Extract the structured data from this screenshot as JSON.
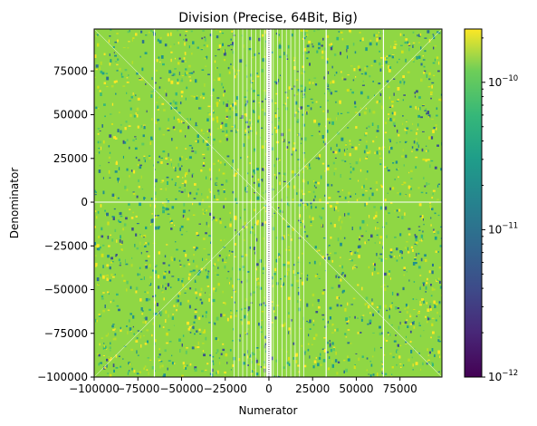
{
  "chart_data": {
    "type": "heatmap",
    "title": "Division (Precise, 64Bit, Big)",
    "xlabel": "Numerator",
    "ylabel": "Denominator",
    "xlim": [
      -100000,
      99000
    ],
    "ylim": [
      -100000,
      99000
    ],
    "x_ticks": [
      -100000,
      -75000,
      -50000,
      -25000,
      0,
      25000,
      50000,
      75000
    ],
    "x_tick_labels": [
      "−100000",
      "−75000",
      "−50000",
      "−25000",
      "0",
      "25000",
      "50000",
      "75000"
    ],
    "y_ticks": [
      -100000,
      -75000,
      -50000,
      -25000,
      0,
      25000,
      50000,
      75000
    ],
    "y_tick_labels": [
      "−100000",
      "−75000",
      "−50000",
      "−25000",
      "0",
      "25000",
      "50000",
      "75000"
    ],
    "colorbar": {
      "scale": "log",
      "colormap": "viridis",
      "range": [
        1e-12,
        2.3e-10
      ],
      "ticks": [
        {
          "value": 1e-12,
          "base": "10",
          "exp": "−12"
        },
        {
          "value": 1e-11,
          "base": "10",
          "exp": "−11"
        },
        {
          "value": 1e-10,
          "base": "10",
          "exp": "−10"
        }
      ]
    },
    "typical_value_range": [
      3e-11,
      2.3e-10
    ],
    "grid": false,
    "colors": {
      "viridis_low": "#440154",
      "viridis_mid": "#21918c",
      "viridis_high": "#fde725",
      "dominant": "#8fd744"
    }
  }
}
